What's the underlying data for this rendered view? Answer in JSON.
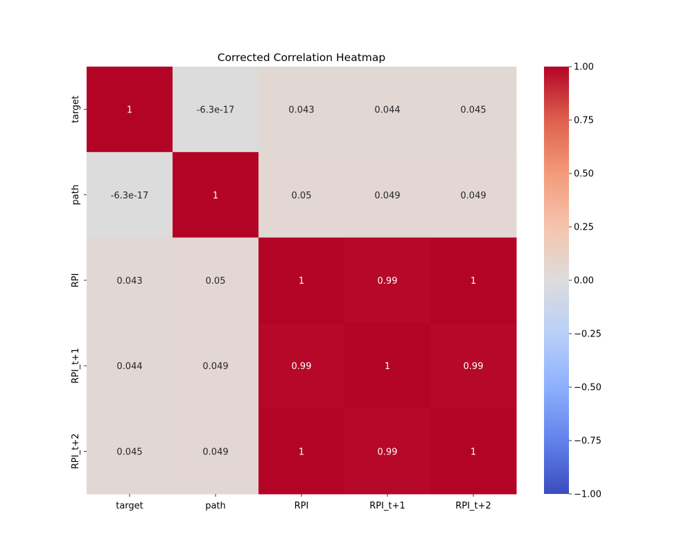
{
  "chart_data": {
    "type": "heatmap",
    "title": "Corrected Correlation Heatmap",
    "xlabel": "",
    "ylabel": "",
    "x_categories": [
      "target",
      "path",
      "RPI",
      "RPI_t+1",
      "RPI_t+2"
    ],
    "y_categories": [
      "target",
      "path",
      "RPI",
      "RPI_t+1",
      "RPI_t+2"
    ],
    "values": [
      [
        1,
        -6.3e-17,
        0.043,
        0.044,
        0.045
      ],
      [
        -6.3e-17,
        1,
        0.05,
        0.049,
        0.049
      ],
      [
        0.043,
        0.05,
        1,
        0.99,
        1
      ],
      [
        0.044,
        0.049,
        0.99,
        1,
        0.99
      ],
      [
        0.045,
        0.049,
        1,
        0.99,
        1
      ]
    ],
    "annotations": [
      [
        "1",
        "-6.3e-17",
        "0.043",
        "0.044",
        "0.045"
      ],
      [
        "-6.3e-17",
        "1",
        "0.05",
        "0.049",
        "0.049"
      ],
      [
        "0.043",
        "0.05",
        "1",
        "0.99",
        "1"
      ],
      [
        "0.044",
        "0.049",
        "0.99",
        "1",
        "0.99"
      ],
      [
        "0.045",
        "0.049",
        "1",
        "0.99",
        "1"
      ]
    ],
    "colormap": "coolwarm",
    "vmin": -1,
    "vmax": 1,
    "colorbar_ticks": [
      1,
      0.75,
      0.5,
      0.25,
      0,
      -0.25,
      -0.5,
      -0.75,
      -1
    ],
    "colorbar_tick_labels": [
      "1.00",
      "0.75",
      "0.50",
      "0.25",
      "0.00",
      "−0.25",
      "−0.50",
      "−0.75",
      "−1.00"
    ],
    "colors": {
      "low": "#3b4cc0",
      "mid": "#dddddd",
      "high": "#b40426"
    },
    "grid": false,
    "legend": "colorbar-right"
  }
}
